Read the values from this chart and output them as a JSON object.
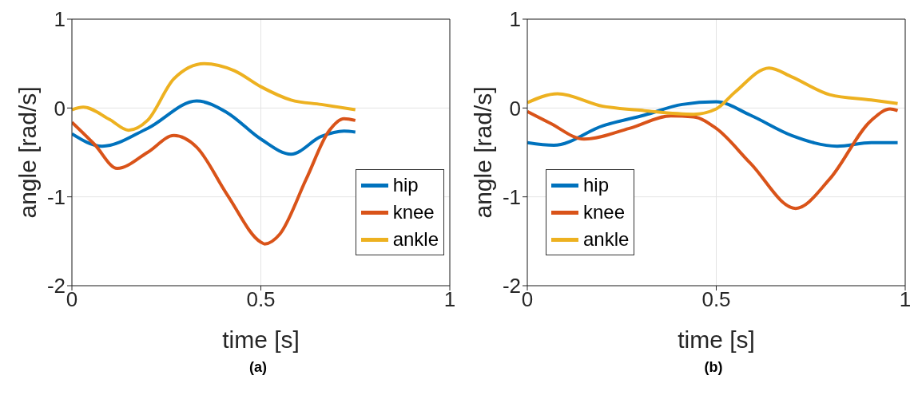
{
  "chart_data": [
    {
      "type": "line",
      "title": "(a)",
      "xlabel": "time [s]",
      "ylabel": "angle [rad/s]",
      "xlim": [
        0,
        1
      ],
      "xticks": [
        0,
        0.5,
        1
      ],
      "ylim": [
        -2,
        1
      ],
      "yticks": [
        -2,
        -1,
        0,
        1
      ],
      "grid": true,
      "legend": "bottom right",
      "line_style": "solid",
      "series": [
        {
          "name": "hip",
          "color": "#0072bd",
          "x": [
            0,
            0.08,
            0.2,
            0.33,
            0.41,
            0.5,
            0.58,
            0.66,
            0.72,
            0.75
          ],
          "values": [
            -0.29,
            -0.43,
            -0.23,
            0.08,
            -0.05,
            -0.35,
            -0.52,
            -0.32,
            -0.26,
            -0.27
          ]
        },
        {
          "name": "knee",
          "color": "#d95319",
          "x": [
            0,
            0.06,
            0.12,
            0.2,
            0.27,
            0.33,
            0.41,
            0.5,
            0.51,
            0.55,
            0.62,
            0.68,
            0.72,
            0.75
          ],
          "values": [
            -0.16,
            -0.41,
            -0.68,
            -0.5,
            -0.31,
            -0.44,
            -0.97,
            -1.51,
            -1.53,
            -1.42,
            -0.8,
            -0.26,
            -0.12,
            -0.14
          ]
        },
        {
          "name": "ankle",
          "color": "#edb120",
          "x": [
            0,
            0.03,
            0.1,
            0.15,
            0.2,
            0.27,
            0.35,
            0.43,
            0.5,
            0.58,
            0.66,
            0.75
          ],
          "values": [
            -0.02,
            0.01,
            -0.13,
            -0.25,
            -0.14,
            0.33,
            0.5,
            0.42,
            0.24,
            0.09,
            0.04,
            -0.02
          ]
        }
      ]
    },
    {
      "type": "line",
      "title": "(b)",
      "xlabel": "time [s]",
      "ylabel": "angle [rad/s]",
      "xlim": [
        0,
        1
      ],
      "xticks": [
        0,
        0.5,
        1
      ],
      "ylim": [
        -2,
        1
      ],
      "yticks": [
        -2,
        -1,
        0,
        1
      ],
      "grid": true,
      "legend": "bottom left",
      "line_style": "solid",
      "series": [
        {
          "name": "hip",
          "color": "#0072bd",
          "x": [
            0,
            0.07,
            0.2,
            0.31,
            0.41,
            0.5,
            0.59,
            0.7,
            0.82,
            0.91,
            0.98
          ],
          "values": [
            -0.39,
            -0.42,
            -0.2,
            -0.08,
            0.04,
            0.07,
            -0.08,
            -0.31,
            -0.43,
            -0.39,
            -0.39
          ]
        },
        {
          "name": "knee",
          "color": "#d95319",
          "x": [
            0,
            0.06,
            0.15,
            0.27,
            0.38,
            0.44,
            0.5,
            0.59,
            0.71,
            0.8,
            0.91,
            0.96,
            0.98
          ],
          "values": [
            -0.04,
            -0.17,
            -0.35,
            -0.23,
            -0.09,
            -0.1,
            -0.23,
            -0.62,
            -1.13,
            -0.8,
            -0.14,
            -0.01,
            -0.03
          ]
        },
        {
          "name": "ankle",
          "color": "#edb120",
          "x": [
            0,
            0.08,
            0.2,
            0.31,
            0.44,
            0.5,
            0.55,
            0.64,
            0.7,
            0.8,
            0.91,
            0.98
          ],
          "values": [
            0.06,
            0.16,
            0.02,
            -0.03,
            -0.07,
            -0.01,
            0.18,
            0.45,
            0.35,
            0.15,
            0.09,
            0.05
          ]
        }
      ]
    }
  ]
}
